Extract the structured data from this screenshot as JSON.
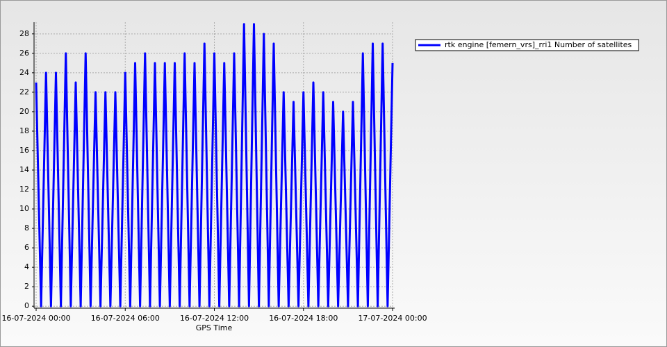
{
  "chart_data": {
    "type": "line",
    "x_label": "GPS Time",
    "x": [
      "16-07-2024 00:00",
      "16-07-2024 00:20",
      "16-07-2024 00:40",
      "16-07-2024 01:00",
      "16-07-2024 01:20",
      "16-07-2024 01:40",
      "16-07-2024 02:00",
      "16-07-2024 02:20",
      "16-07-2024 02:40",
      "16-07-2024 03:00",
      "16-07-2024 03:20",
      "16-07-2024 03:40",
      "16-07-2024 04:00",
      "16-07-2024 04:20",
      "16-07-2024 04:40",
      "16-07-2024 05:00",
      "16-07-2024 05:20",
      "16-07-2024 05:40",
      "16-07-2024 06:00",
      "16-07-2024 06:20",
      "16-07-2024 06:40",
      "16-07-2024 07:00",
      "16-07-2024 07:20",
      "16-07-2024 07:40",
      "16-07-2024 08:00",
      "16-07-2024 08:20",
      "16-07-2024 08:40",
      "16-07-2024 09:00",
      "16-07-2024 09:20",
      "16-07-2024 09:40",
      "16-07-2024 10:00",
      "16-07-2024 10:20",
      "16-07-2024 10:40",
      "16-07-2024 11:00",
      "16-07-2024 11:20",
      "16-07-2024 11:40",
      "16-07-2024 12:00",
      "16-07-2024 12:20",
      "16-07-2024 12:40",
      "16-07-2024 13:00",
      "16-07-2024 13:20",
      "16-07-2024 13:40",
      "16-07-2024 14:00",
      "16-07-2024 14:20",
      "16-07-2024 14:40",
      "16-07-2024 15:00",
      "16-07-2024 15:20",
      "16-07-2024 15:40",
      "16-07-2024 16:00",
      "16-07-2024 16:20",
      "16-07-2024 16:40",
      "16-07-2024 17:00",
      "16-07-2024 17:20",
      "16-07-2024 17:40",
      "16-07-2024 18:00",
      "16-07-2024 18:20",
      "16-07-2024 18:40",
      "16-07-2024 19:00",
      "16-07-2024 19:20",
      "16-07-2024 19:40",
      "16-07-2024 20:00",
      "16-07-2024 20:20",
      "16-07-2024 20:40",
      "16-07-2024 21:00",
      "16-07-2024 21:20",
      "16-07-2024 21:40",
      "16-07-2024 22:00",
      "16-07-2024 22:20",
      "16-07-2024 22:40",
      "16-07-2024 23:00",
      "16-07-2024 23:20",
      "16-07-2024 23:40",
      "17-07-2024 00:00"
    ],
    "series": [
      {
        "name": "rtk engine [femern_vrs]_rri1 Number of satellites",
        "color": "#0000ff",
        "values": [
          23,
          0,
          24,
          0,
          24,
          0,
          26,
          0,
          23,
          0,
          26,
          0,
          22,
          0,
          22,
          0,
          22,
          0,
          24,
          0,
          25,
          0,
          26,
          0,
          25,
          0,
          25,
          0,
          25,
          0,
          26,
          0,
          25,
          0,
          27,
          0,
          26,
          0,
          25,
          0,
          26,
          0,
          29,
          0,
          29,
          0,
          28,
          0,
          27,
          0,
          22,
          0,
          21,
          0,
          22,
          0,
          23,
          0,
          22,
          0,
          21,
          0,
          20,
          0,
          21,
          0,
          26,
          0,
          27,
          0,
          27,
          0,
          25
        ]
      }
    ],
    "xticks": [
      "16-07-2024 00:00",
      "16-07-2024 06:00",
      "16-07-2024 12:00",
      "16-07-2024 18:00",
      "17-07-2024 00:00"
    ],
    "ylim": [
      -0.2,
      29.2
    ],
    "yticks": [
      0,
      2,
      4,
      6,
      8,
      10,
      12,
      14,
      16,
      18,
      20,
      22,
      24,
      26,
      28
    ],
    "grid": true,
    "legend": "top-right"
  }
}
